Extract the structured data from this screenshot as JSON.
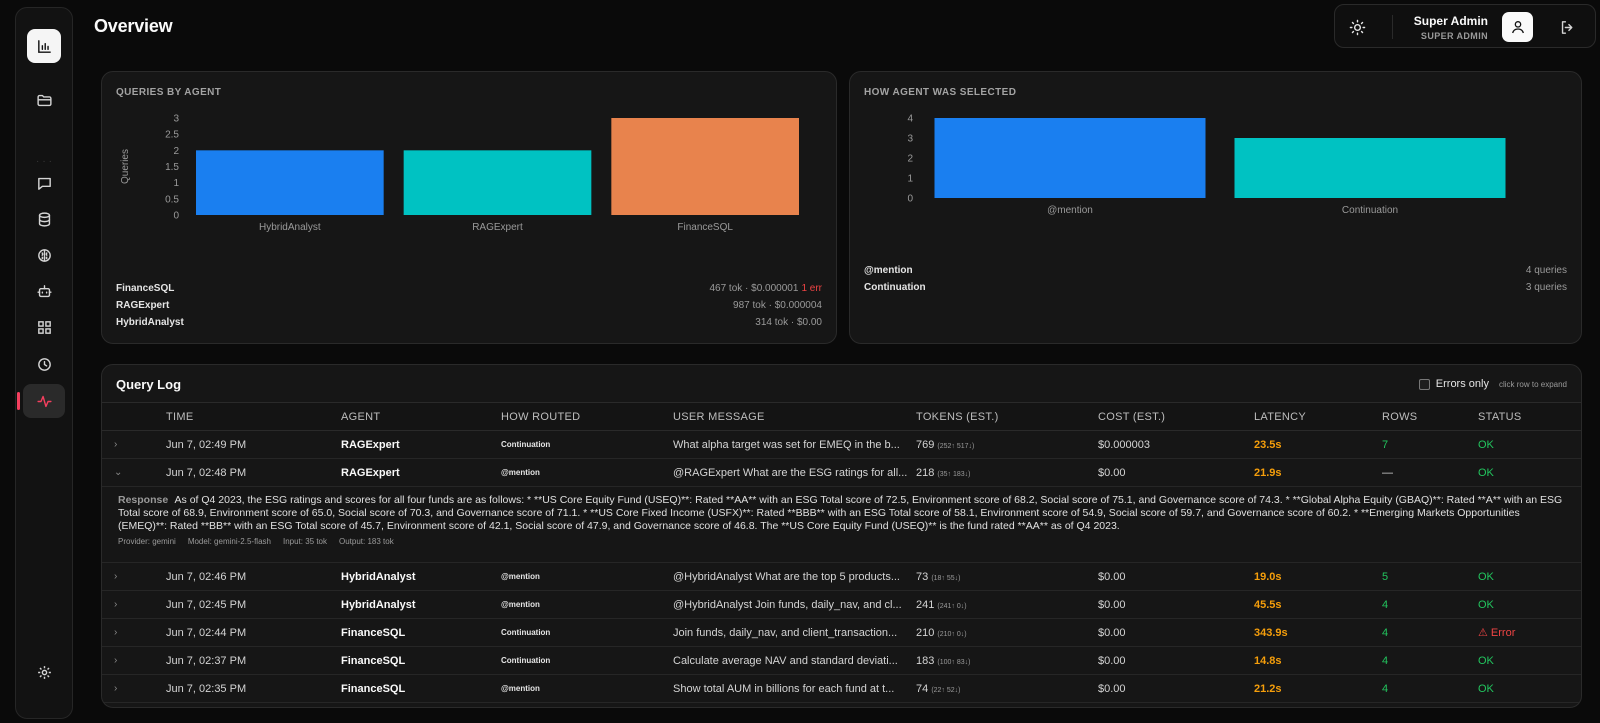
{
  "page": {
    "title": "Overview"
  },
  "user": {
    "name": "Super Admin",
    "role": "SUPER ADMIN"
  },
  "sidebar": {
    "items": [
      {
        "name": "folder-icon"
      },
      {
        "name": "chat-icon"
      },
      {
        "name": "database-icon"
      },
      {
        "name": "brain-icon"
      },
      {
        "name": "bot-icon"
      },
      {
        "name": "grid-icon"
      },
      {
        "name": "clock-icon"
      },
      {
        "name": "activity-icon",
        "active": true
      },
      {
        "name": "settings-icon"
      }
    ]
  },
  "queries_by_agent": {
    "title": "QUERIES BY AGENT",
    "legend": [
      {
        "name": "FinanceSQL",
        "value": "467 tok · $0.000001",
        "error": "1 err"
      },
      {
        "name": "RAGExpert",
        "value": "987 tok · $0.000004",
        "error": ""
      },
      {
        "name": "HybridAnalyst",
        "value": "314 tok · $0.00",
        "error": ""
      }
    ]
  },
  "agent_selection": {
    "title": "HOW AGENT WAS SELECTED",
    "legend": [
      {
        "name": "@mention",
        "value": "4 queries"
      },
      {
        "name": "Continuation",
        "value": "3 queries"
      }
    ]
  },
  "chart_data": [
    {
      "type": "bar",
      "categories": [
        "HybridAnalyst",
        "RAGExpert",
        "FinanceSQL"
      ],
      "values": [
        2,
        2,
        3
      ],
      "colors": [
        "#1a7ff0",
        "#00c2c2",
        "#e8834d"
      ],
      "ylabel": "Queries",
      "yticks": [
        "0",
        "0.5",
        "1",
        "1.5",
        "2",
        "2.5",
        "3"
      ],
      "ylim": [
        0,
        3
      ],
      "grid": false
    },
    {
      "type": "bar",
      "categories": [
        "@mention",
        "Continuation"
      ],
      "values": [
        4,
        3
      ],
      "colors": [
        "#1a7ff0",
        "#00c2c2"
      ],
      "yticks": [
        "0",
        "1",
        "2",
        "3",
        "4"
      ],
      "ylim": [
        0,
        4
      ],
      "grid": false
    }
  ],
  "query_log": {
    "title": "Query Log",
    "errors_only_label": "Errors only",
    "hint": "click row to expand",
    "columns": [
      "TIME",
      "AGENT",
      "HOW ROUTED",
      "USER MESSAGE",
      "TOKENS (EST.)",
      "COST (EST.)",
      "LATENCY",
      "ROWS",
      "STATUS"
    ],
    "rows": [
      {
        "expanded": false,
        "time": "Jun 7, 02:49 PM",
        "agent": "RAGExpert",
        "routed": "Continuation",
        "message": "What alpha target was set for EMEQ in the b...",
        "tokens": "769",
        "tokens_detail": "(252↑ 517↓)",
        "cost": "$0.000003",
        "latency": "23.5s",
        "rows": "7",
        "status": "OK"
      },
      {
        "expanded": true,
        "time": "Jun 7, 02:48 PM",
        "agent": "RAGExpert",
        "routed": "@mention",
        "message": "@RAGExpert What are the ESG ratings for all...",
        "tokens": "218",
        "tokens_detail": "(35↑ 183↓)",
        "cost": "$0.00",
        "latency": "21.9s",
        "rows": "—",
        "status": "OK"
      },
      {
        "expanded": false,
        "time": "Jun 7, 02:46 PM",
        "agent": "HybridAnalyst",
        "routed": "@mention",
        "message": "@HybridAnalyst What are the top 5 products...",
        "tokens": "73",
        "tokens_detail": "(18↑ 55↓)",
        "cost": "$0.00",
        "latency": "19.0s",
        "rows": "5",
        "status": "OK"
      },
      {
        "expanded": false,
        "time": "Jun 7, 02:45 PM",
        "agent": "HybridAnalyst",
        "routed": "@mention",
        "message": "@HybridAnalyst Join funds, daily_nav, and cl...",
        "tokens": "241",
        "tokens_detail": "(241↑ 0↓)",
        "cost": "$0.00",
        "latency": "45.5s",
        "rows": "4",
        "status": "OK"
      },
      {
        "expanded": false,
        "time": "Jun 7, 02:44 PM",
        "agent": "FinanceSQL",
        "routed": "Continuation",
        "message": "Join funds, daily_nav, and client_transaction...",
        "tokens": "210",
        "tokens_detail": "(210↑ 0↓)",
        "cost": "$0.00",
        "latency": "343.9s",
        "rows": "4",
        "status": "Error"
      },
      {
        "expanded": false,
        "time": "Jun 7, 02:37 PM",
        "agent": "FinanceSQL",
        "routed": "Continuation",
        "message": "Calculate average NAV and standard deviati...",
        "tokens": "183",
        "tokens_detail": "(100↑ 83↓)",
        "cost": "$0.00",
        "latency": "14.8s",
        "rows": "4",
        "status": "OK"
      },
      {
        "expanded": false,
        "time": "Jun 7, 02:35 PM",
        "agent": "FinanceSQL",
        "routed": "@mention",
        "message": "Show total AUM in billions for each fund at t...",
        "tokens": "74",
        "tokens_detail": "(22↑ 52↓)",
        "cost": "$0.00",
        "latency": "21.2s",
        "rows": "4",
        "status": "OK"
      }
    ],
    "expanded_detail": {
      "label": "Response",
      "text": "As of Q4 2023, the ESG ratings and scores for all four funds are as follows: * **US Core Equity Fund (USEQ)**: Rated **AA** with an ESG Total score of 72.5, Environment score of 68.2, Social score of 75.1, and Governance score of 74.3. * **Global Alpha Equity (GBAQ)**: Rated **A** with an ESG Total score of 68.9, Environment score of 65.0, Social score of 70.3, and Governance score of 71.1. * **US Core Fixed Income (USFX)**: Rated **BBB** with an ESG Total score of 58.1, Environment score of 54.9, Social score of 59.7, and Governance score of 60.2. * **Emerging Markets Opportunities (EMEQ)**: Rated **BB** with an ESG Total score of 45.7, Environment score of 42.1, Social score of 47.9, and Governance score of 46.8. The **US Core Equity Fund (USEQ)** is the fund rated **AA** as of Q4 2023.",
      "provider": "Provider: gemini",
      "model": "Model: gemini-2.5-flash",
      "input": "Input: 35 tok",
      "output": "Output: 183 tok"
    }
  }
}
